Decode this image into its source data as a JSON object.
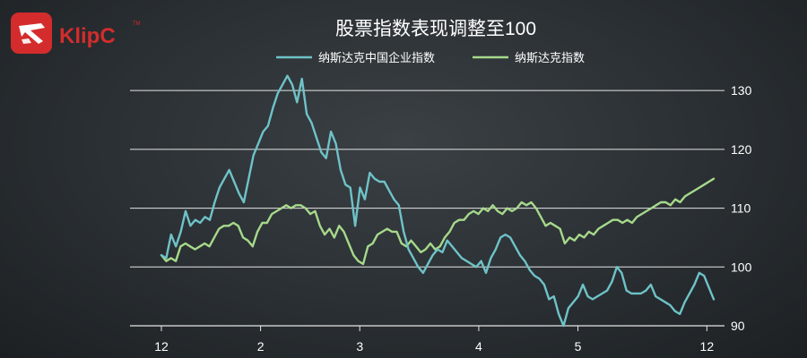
{
  "brand": {
    "logo_text": "KlipC",
    "trademark": "TM",
    "logo_color": "#d42c2c"
  },
  "chart_data": {
    "type": "line",
    "title": "股票指数表现调整至100",
    "legend_placement": "top-center",
    "xlabel": "",
    "ylabel": "",
    "ylim": [
      90,
      132
    ],
    "yticks": [
      90,
      100,
      110,
      120,
      130
    ],
    "grid": true,
    "x_tick_labels": [
      "12",
      "2",
      "3",
      "4",
      "5",
      "12"
    ],
    "x_tick_positions": [
      0,
      10,
      20,
      32,
      42,
      55
    ],
    "x_range": [
      0,
      66
    ],
    "series": [
      {
        "name": "纳斯达克中国企业指数",
        "color": "#6ec3c8",
        "values": [
          102,
          101.5,
          105.5,
          103.5,
          106,
          109.5,
          107,
          108,
          107.5,
          108.5,
          108,
          111,
          113.5,
          115,
          116.5,
          114.5,
          112.5,
          111,
          115,
          119,
          121,
          123,
          124,
          127,
          129.5,
          131,
          132.5,
          131,
          128,
          132,
          126,
          124.5,
          122,
          119.5,
          118.5,
          123,
          121,
          116.5,
          114,
          113.5,
          107,
          113.5,
          111.5,
          116,
          115,
          114.5,
          114.5,
          113,
          111.5,
          110.5,
          106,
          103,
          101.5,
          100,
          99,
          100.5,
          102,
          103,
          102.5,
          104.5,
          103.5,
          102.5,
          101.5,
          101,
          100.5,
          100,
          101,
          99,
          101.5,
          103,
          105,
          105.5,
          105,
          103.5,
          102,
          101,
          99.5,
          98.5,
          98,
          97,
          94.5,
          95,
          92,
          90,
          93,
          94,
          95,
          97,
          95,
          94.5,
          95,
          95.5,
          96,
          97.5,
          100,
          99,
          96,
          95.5,
          95.5,
          95.5,
          96,
          97,
          95,
          94.5,
          94,
          93.5,
          92.5,
          92,
          94,
          95.5,
          97,
          99,
          98.5,
          96.5,
          94.5
        ]
      },
      {
        "name": "纳斯达克指数",
        "color": "#a6d98a",
        "values": [
          102,
          101,
          101.5,
          101,
          103.5,
          104,
          103.5,
          103,
          103.5,
          104,
          103.5,
          105,
          106.5,
          107,
          107,
          107.5,
          107,
          105,
          104.5,
          103.5,
          106,
          107.5,
          107.5,
          109,
          109.5,
          110,
          110.5,
          110,
          110.5,
          110.5,
          110,
          109,
          109.5,
          107,
          105.5,
          106.5,
          105,
          107,
          106,
          104,
          102,
          101,
          100.5,
          103.5,
          104,
          105.5,
          106,
          106.5,
          106,
          106,
          104,
          103.5,
          104.5,
          103.5,
          102.5,
          103,
          104,
          103,
          103.5,
          105,
          106,
          107.5,
          108,
          108,
          109,
          109.5,
          109,
          110,
          109.5,
          110.5,
          109.5,
          109,
          110,
          109.5,
          110,
          111,
          110.5,
          111,
          110,
          108.5,
          107,
          107.5,
          107,
          106.5,
          104,
          105,
          104.5,
          105.5,
          105,
          106,
          105.5,
          106.5,
          107,
          107.5,
          108,
          108,
          107.5,
          108,
          107.5,
          108.5,
          109,
          109.5,
          110,
          110.5,
          111,
          111,
          110.5,
          111.5,
          111,
          112,
          112.5,
          113,
          113.5,
          114,
          114.5,
          115
        ]
      }
    ]
  }
}
